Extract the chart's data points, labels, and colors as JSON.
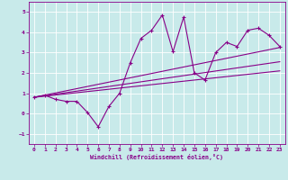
{
  "xlabel": "Windchill (Refroidissement éolien,°C)",
  "background_color": "#c8eaea",
  "grid_color": "#ffffff",
  "line_color": "#880088",
  "xlim": [
    -0.5,
    23.5
  ],
  "ylim": [
    -1.5,
    5.5
  ],
  "yticks": [
    -1,
    0,
    1,
    2,
    3,
    4,
    5
  ],
  "xticks": [
    0,
    1,
    2,
    3,
    4,
    5,
    6,
    7,
    8,
    9,
    10,
    11,
    12,
    13,
    14,
    15,
    16,
    17,
    18,
    19,
    20,
    21,
    22,
    23
  ],
  "curve1_x": [
    0,
    1,
    2,
    3,
    4,
    5,
    6,
    7,
    8,
    9,
    10,
    11,
    12,
    13,
    14,
    15,
    16,
    17,
    18,
    19,
    20,
    21,
    22,
    23
  ],
  "curve1_y": [
    0.8,
    0.9,
    0.7,
    0.6,
    0.6,
    0.05,
    -0.65,
    0.35,
    1.0,
    2.5,
    3.7,
    4.1,
    4.85,
    3.05,
    4.75,
    2.0,
    1.65,
    3.0,
    3.5,
    3.3,
    4.1,
    4.2,
    3.85,
    3.3
  ],
  "line1_x": [
    0,
    23
  ],
  "line1_y": [
    0.8,
    2.55
  ],
  "line2_x": [
    0,
    23
  ],
  "line2_y": [
    0.8,
    3.25
  ],
  "line3_x": [
    0,
    23
  ],
  "line3_y": [
    0.8,
    2.1
  ]
}
